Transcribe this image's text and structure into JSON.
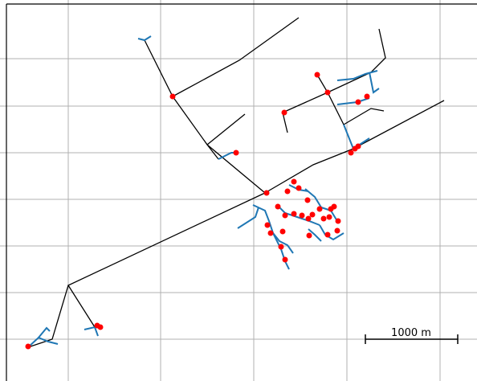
{
  "scale_bar": {
    "label": "1000 m"
  },
  "colors": {
    "background": "#ffffff",
    "grid": "#b0b0b0",
    "line": "#000000",
    "bus": "#1f77b4",
    "load": "#ff0000"
  },
  "grid": {
    "visible": true
  }
}
